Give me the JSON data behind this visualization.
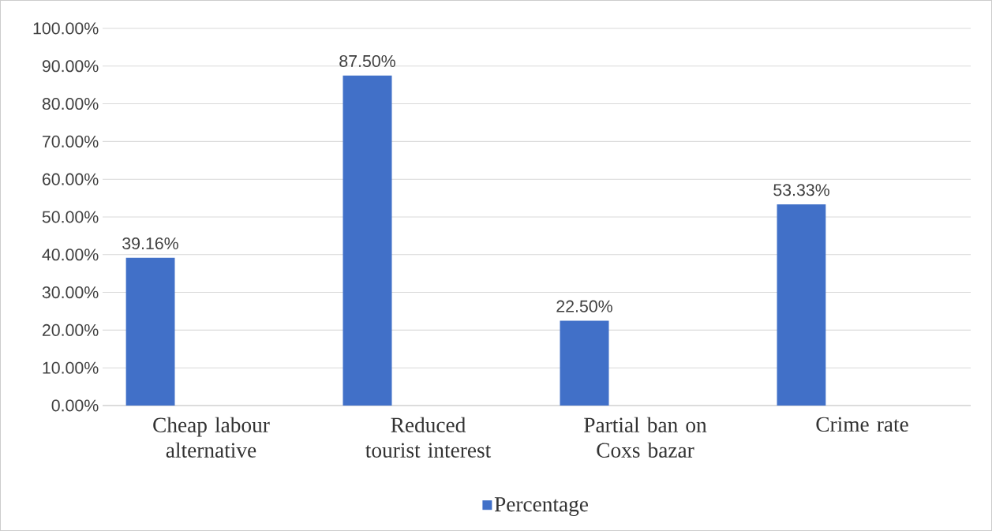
{
  "chart_data": {
    "type": "bar",
    "categories": [
      "Cheap labour alternative",
      "Reduced tourist interest",
      "Partial ban on Coxs bazar",
      "Crime rate"
    ],
    "series": [
      {
        "name": "Percentage",
        "color": "#4170c8",
        "values": [
          39.16,
          87.5,
          22.5,
          53.33
        ],
        "value_labels": [
          "39.16%",
          "87.50%",
          "22.50%",
          "53.33%"
        ]
      }
    ],
    "ylim": [
      0,
      100
    ],
    "yticks": [
      {
        "value": 0,
        "label": "0.00%"
      },
      {
        "value": 10,
        "label": "10.00%"
      },
      {
        "value": 20,
        "label": "20.00%"
      },
      {
        "value": 30,
        "label": "30.00%"
      },
      {
        "value": 40,
        "label": "40.00%"
      },
      {
        "value": 50,
        "label": "50.00%"
      },
      {
        "value": 60,
        "label": "60.00%"
      },
      {
        "value": 70,
        "label": "70.00%"
      },
      {
        "value": 80,
        "label": "80.00%"
      },
      {
        "value": 90,
        "label": "90.00%"
      },
      {
        "value": 100,
        "label": "100.00%"
      }
    ],
    "grid": "y",
    "legend": "bottom"
  }
}
